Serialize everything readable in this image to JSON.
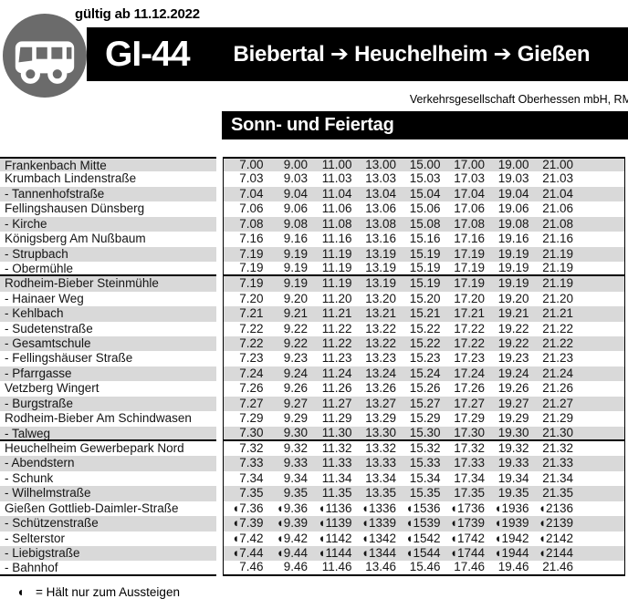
{
  "colors": {
    "bar_black": "#000000",
    "row_shade": "#d9d9d9",
    "badge_gray": "#6b6b6b"
  },
  "header": {
    "valid_from": "gültig ab 11.12.2022",
    "line": "GI-44",
    "route": "Biebertal ➔ Heuchelheim ➔ Gießen",
    "operator": "Verkehrsgesellschaft Oberhessen mbH, RM",
    "day_type": "Sonn- und Feiertag"
  },
  "timetable": {
    "hour_columns": [
      "7",
      "9",
      "11",
      "13",
      "15",
      "17",
      "19",
      "21"
    ],
    "rows": [
      {
        "stop": "Frankenbach Mitte",
        "times": [
          "7.00",
          "9.00",
          "11.00",
          "13.00",
          "15.00",
          "17.00",
          "19.00",
          "21.00"
        ]
      },
      {
        "stop": "Krumbach Lindenstraße",
        "times": [
          "7.03",
          "9.03",
          "11.03",
          "13.03",
          "15.03",
          "17.03",
          "19.03",
          "21.03"
        ]
      },
      {
        "stop": "- Tannenhofstraße",
        "times": [
          "7.04",
          "9.04",
          "11.04",
          "13.04",
          "15.04",
          "17.04",
          "19.04",
          "21.04"
        ]
      },
      {
        "stop": "Fellingshausen Dünsberg",
        "times": [
          "7.06",
          "9.06",
          "11.06",
          "13.06",
          "15.06",
          "17.06",
          "19.06",
          "21.06"
        ]
      },
      {
        "stop": "- Kirche",
        "times": [
          "7.08",
          "9.08",
          "11.08",
          "13.08",
          "15.08",
          "17.08",
          "19.08",
          "21.08"
        ]
      },
      {
        "stop": "Königsberg Am Nußbaum",
        "times": [
          "7.16",
          "9.16",
          "11.16",
          "13.16",
          "15.16",
          "17.16",
          "19.16",
          "21.16"
        ]
      },
      {
        "stop": "- Strupbach",
        "times": [
          "7.19",
          "9.19",
          "11.19",
          "13.19",
          "15.19",
          "17.19",
          "19.19",
          "21.19"
        ]
      },
      {
        "stop": "- Obermühle",
        "times": [
          "7.19",
          "9.19",
          "11.19",
          "13.19",
          "15.19",
          "17.19",
          "19.19",
          "21.19"
        ],
        "rule_below": true
      },
      {
        "stop": "Rodheim-Bieber Steinmühle",
        "times": [
          "7.19",
          "9.19",
          "11.19",
          "13.19",
          "15.19",
          "17.19",
          "19.19",
          "21.19"
        ]
      },
      {
        "stop": "- Hainaer Weg",
        "times": [
          "7.20",
          "9.20",
          "11.20",
          "13.20",
          "15.20",
          "17.20",
          "19.20",
          "21.20"
        ]
      },
      {
        "stop": "- Kehlbach",
        "times": [
          "7.21",
          "9.21",
          "11.21",
          "13.21",
          "15.21",
          "17.21",
          "19.21",
          "21.21"
        ]
      },
      {
        "stop": "- Sudetenstraße",
        "times": [
          "7.22",
          "9.22",
          "11.22",
          "13.22",
          "15.22",
          "17.22",
          "19.22",
          "21.22"
        ]
      },
      {
        "stop": "- Gesamtschule",
        "times": [
          "7.22",
          "9.22",
          "11.22",
          "13.22",
          "15.22",
          "17.22",
          "19.22",
          "21.22"
        ]
      },
      {
        "stop": "- Fellingshäuser Straße",
        "times": [
          "7.23",
          "9.23",
          "11.23",
          "13.23",
          "15.23",
          "17.23",
          "19.23",
          "21.23"
        ]
      },
      {
        "stop": "- Pfarrgasse",
        "times": [
          "7.24",
          "9.24",
          "11.24",
          "13.24",
          "15.24",
          "17.24",
          "19.24",
          "21.24"
        ]
      },
      {
        "stop": "Vetzberg Wingert",
        "times": [
          "7.26",
          "9.26",
          "11.26",
          "13.26",
          "15.26",
          "17.26",
          "19.26",
          "21.26"
        ]
      },
      {
        "stop": "- Burgstraße",
        "times": [
          "7.27",
          "9.27",
          "11.27",
          "13.27",
          "15.27",
          "17.27",
          "19.27",
          "21.27"
        ]
      },
      {
        "stop": "Rodheim-Bieber Am Schindwasen",
        "times": [
          "7.29",
          "9.29",
          "11.29",
          "13.29",
          "15.29",
          "17.29",
          "19.29",
          "21.29"
        ]
      },
      {
        "stop": "- Talweg",
        "times": [
          "7.30",
          "9.30",
          "11.30",
          "13.30",
          "15.30",
          "17.30",
          "19.30",
          "21.30"
        ],
        "rule_below": true
      },
      {
        "stop": "Heuchelheim Gewerbepark Nord",
        "times": [
          "7.32",
          "9.32",
          "11.32",
          "13.32",
          "15.32",
          "17.32",
          "19.32",
          "21.32"
        ]
      },
      {
        "stop": "- Abendstern",
        "times": [
          "7.33",
          "9.33",
          "11.33",
          "13.33",
          "15.33",
          "17.33",
          "19.33",
          "21.33"
        ]
      },
      {
        "stop": "- Schunk",
        "times": [
          "7.34",
          "9.34",
          "11.34",
          "13.34",
          "15.34",
          "17.34",
          "19.34",
          "21.34"
        ]
      },
      {
        "stop": "- Wilhelmstraße",
        "times": [
          "7.35",
          "9.35",
          "11.35",
          "13.35",
          "15.35",
          "17.35",
          "19.35",
          "21.35"
        ]
      },
      {
        "stop": "Gießen Gottlieb-Daimler-Straße",
        "times": [
          "◖7.36",
          "◖9.36",
          "◖1136",
          "◖1336",
          "◖1536",
          "◖1736",
          "◖1936",
          "◖2136"
        ]
      },
      {
        "stop": "- Schützenstraße",
        "times": [
          "◖7.39",
          "◖9.39",
          "◖1139",
          "◖1339",
          "◖1539",
          "◖1739",
          "◖1939",
          "◖2139"
        ]
      },
      {
        "stop": "- Selterstor",
        "times": [
          "◖7.42",
          "◖9.42",
          "◖1142",
          "◖1342",
          "◖1542",
          "◖1742",
          "◖1942",
          "◖2142"
        ]
      },
      {
        "stop": "- Liebigstraße",
        "times": [
          "◖7.44",
          "◖9.44",
          "◖1144",
          "◖1344",
          "◖1544",
          "◖1744",
          "◖1944",
          "◖2144"
        ]
      },
      {
        "stop": "- Bahnhof",
        "times": [
          "7.46",
          "9.46",
          "11.46",
          "13.46",
          "15.46",
          "17.46",
          "19.46",
          "21.46"
        ]
      }
    ]
  },
  "legend": {
    "symbol": "◖",
    "text": "= Hält nur zum Aussteigen"
  }
}
